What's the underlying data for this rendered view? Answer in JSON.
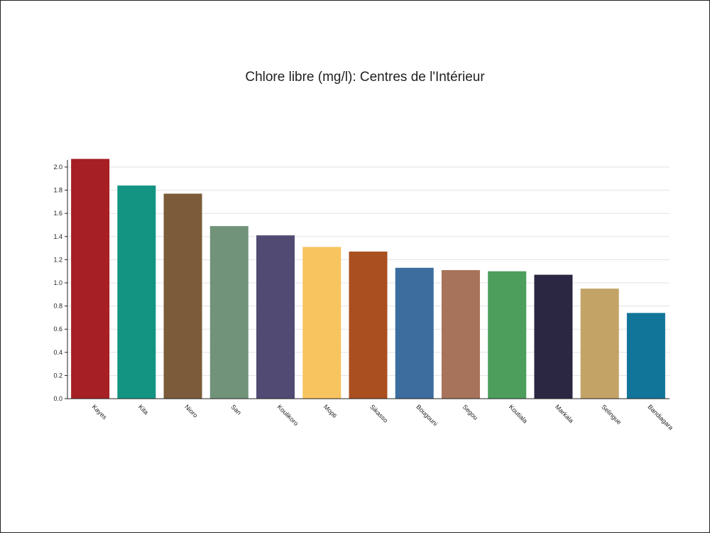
{
  "chart_data": {
    "type": "bar",
    "title": "Chlore libre (mg/l): Centres de l'Intérieur",
    "xlabel": "",
    "ylabel": "",
    "categories": [
      "Kayes",
      "Kita",
      "Nioro",
      "San",
      "Koulikoro",
      "Mopti",
      "Sikasso",
      "Bougouni",
      "Segou",
      "Koutiala",
      "Markala",
      "Selingue",
      "Bandiagara"
    ],
    "values": [
      2.07,
      1.84,
      1.77,
      1.49,
      1.41,
      1.31,
      1.27,
      1.13,
      1.11,
      1.1,
      1.07,
      0.95,
      0.74
    ],
    "colors": [
      "#a51f24",
      "#139483",
      "#7b5b39",
      "#71937a",
      "#514b74",
      "#f8c45f",
      "#a94f20",
      "#3d6d9e",
      "#a8735b",
      "#4d9e5c",
      "#2b2742",
      "#c3a366",
      "#107598"
    ],
    "ylim": [
      0,
      2.1
    ],
    "yticks": [
      "0.0",
      "0.2",
      "0.4",
      "0.6",
      "0.8",
      "1.0",
      "1.2",
      "1.4",
      "1.6",
      "1.8",
      "2.0"
    ],
    "grid": true,
    "legend": "none"
  }
}
